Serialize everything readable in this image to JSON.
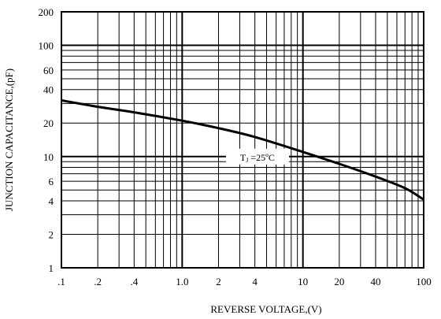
{
  "chart_data": {
    "type": "line",
    "title": "",
    "xlabel": "REVERSE VOLTAGE,(V)",
    "ylabel": "JUNCTION CAPACITANCE,(pF)",
    "x_scale": "log",
    "y_scale": "log",
    "xlim": [
      0.1,
      100
    ],
    "ylim": [
      1,
      200
    ],
    "grid": true,
    "x_ticks": [
      {
        "value": 0.1,
        "label": ".1"
      },
      {
        "value": 0.2,
        "label": ".2"
      },
      {
        "value": 0.4,
        "label": ".4"
      },
      {
        "value": 1,
        "label": "1.0"
      },
      {
        "value": 2,
        "label": "2"
      },
      {
        "value": 4,
        "label": "4"
      },
      {
        "value": 10,
        "label": "10"
      },
      {
        "value": 20,
        "label": "20"
      },
      {
        "value": 40,
        "label": "40"
      },
      {
        "value": 100,
        "label": "100"
      }
    ],
    "y_ticks": [
      {
        "value": 1,
        "label": "1"
      },
      {
        "value": 2,
        "label": "2"
      },
      {
        "value": 4,
        "label": "4"
      },
      {
        "value": 6,
        "label": "6"
      },
      {
        "value": 10,
        "label": "10"
      },
      {
        "value": 20,
        "label": "20"
      },
      {
        "value": 40,
        "label": "40"
      },
      {
        "value": 60,
        "label": "60"
      },
      {
        "value": 100,
        "label": "100"
      },
      {
        "value": 200,
        "label": "200"
      }
    ],
    "series": [
      {
        "x": [
          0.1,
          0.2,
          0.4,
          1,
          2,
          4,
          10,
          20,
          40,
          70,
          100
        ],
        "y": [
          32,
          28,
          25,
          21,
          18,
          15,
          11,
          8.6,
          6.6,
          5.2,
          4.1
        ]
      }
    ],
    "annotations": [
      {
        "text_main": "T",
        "text_sub": "J",
        "text_rest": " =25ºC",
        "x": 4.2,
        "y": 10
      }
    ]
  }
}
